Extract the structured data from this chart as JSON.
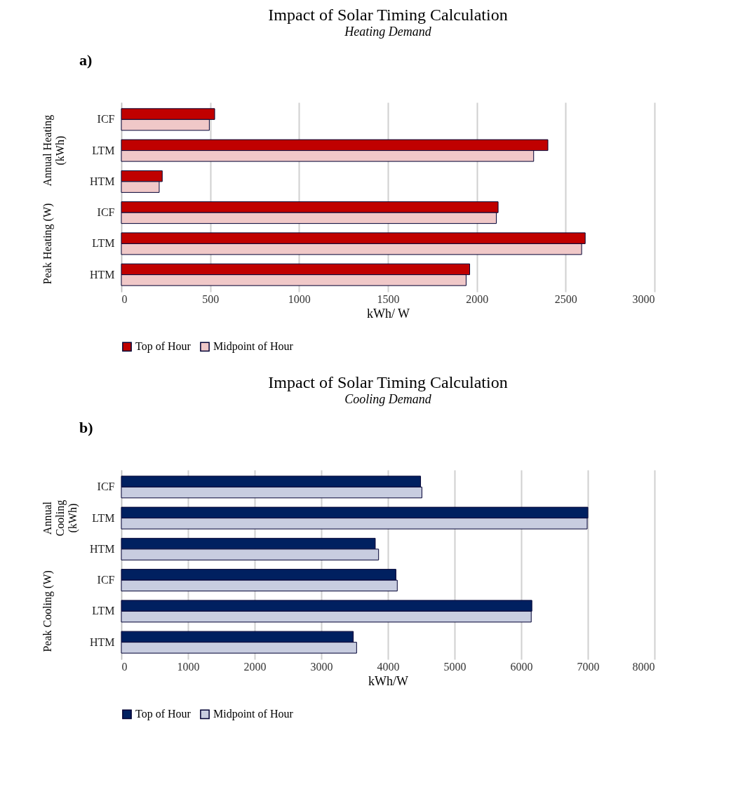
{
  "chart_data": [
    {
      "type": "bar",
      "orientation": "horizontal",
      "title": "Impact of Solar Timing Calculation",
      "subtitle": "Heating Demand",
      "xlabel": "kWh/ W",
      "annotations": [
        "a)",
        "Annual Heating\n(kWh)",
        "Peak Heating (W)"
      ],
      "categories": [
        "ICF",
        "LTM",
        "HTM",
        "ICF",
        "LTM",
        "HTM"
      ],
      "series": [
        {
          "name": "Top of Hour",
          "color": "#c00000",
          "values": [
            525,
            2400,
            230,
            2120,
            2610,
            1960
          ]
        },
        {
          "name": "Midpoint of Hour",
          "color": "#f0c8c8",
          "values": [
            495,
            2320,
            213,
            2110,
            2590,
            1940
          ]
        }
      ],
      "xlim": [
        0,
        3000
      ],
      "xticks": [
        0,
        500,
        1000,
        1500,
        2000,
        2500,
        3000
      ],
      "grid": "x",
      "legend": "bottom"
    },
    {
      "type": "bar",
      "orientation": "horizontal",
      "title": "Impact of Solar Timing Calculation",
      "subtitle": "Cooling Demand",
      "xlabel": "kWh/W",
      "annotations": [
        "b)",
        "Annual\nCooling\n(kWh)",
        "Peak Cooling (W)"
      ],
      "categories": [
        "ICF",
        "LTM",
        "HTM",
        "ICF",
        "LTM",
        "HTM"
      ],
      "series": [
        {
          "name": "Top of Hour",
          "color": "#002060",
          "values": [
            4490,
            7000,
            3810,
            4120,
            6160,
            3480
          ]
        },
        {
          "name": "Midpoint of Hour",
          "color": "#c8cde0",
          "values": [
            4510,
            6990,
            3860,
            4140,
            6150,
            3530
          ]
        }
      ],
      "xlim": [
        0,
        8000
      ],
      "xticks": [
        0,
        1000,
        2000,
        3000,
        4000,
        5000,
        6000,
        7000,
        8000
      ],
      "grid": "x",
      "legend": "bottom"
    }
  ]
}
